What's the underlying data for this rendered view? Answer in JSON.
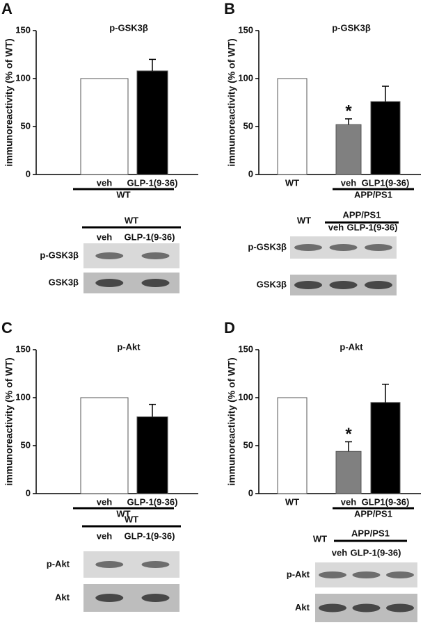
{
  "chart_data": [
    {
      "type": "bar",
      "panel": "A",
      "title": "p-GSK3β",
      "y_label": "immunoreactivity (% of WT)",
      "ylim": [
        0,
        150
      ],
      "yticks": [
        0,
        50,
        100,
        150
      ],
      "categories": [
        "veh",
        "GLP-1(9-36)"
      ],
      "group_label": "WT",
      "values": [
        100,
        108
      ],
      "errors": [
        null,
        12
      ],
      "colors": [
        "#ffffff",
        "#000000"
      ],
      "annotations": [
        null,
        null
      ],
      "blot": {
        "group_label": "WT",
        "lanes": [
          "veh",
          "GLP-1(9-36)"
        ],
        "rows": [
          "p-GSK3β",
          "GSK3β"
        ]
      }
    },
    {
      "type": "bar",
      "panel": "B",
      "title": "p-GSK3β",
      "y_label": "immunoreactivity (% of WT)",
      "ylim": [
        0,
        150
      ],
      "yticks": [
        0,
        50,
        100,
        150
      ],
      "categories": [
        "WT",
        "veh",
        "GLP1(9-36)"
      ],
      "group_label": "APP/PS1",
      "values": [
        100,
        52,
        76
      ],
      "errors": [
        null,
        6,
        16
      ],
      "colors": [
        "#ffffff",
        "#808080",
        "#000000"
      ],
      "annotations": [
        null,
        "*",
        null
      ],
      "blot": {
        "group_label": "APP/PS1",
        "lanes": [
          "WT",
          "veh",
          "GLP-1(9-36)"
        ],
        "rows": [
          "p-GSK3β",
          "GSK3β"
        ]
      }
    },
    {
      "type": "bar",
      "panel": "C",
      "title": "p-Akt",
      "y_label": "immunoreactivity (% of WT)",
      "ylim": [
        0,
        150
      ],
      "yticks": [
        0,
        50,
        100,
        150
      ],
      "categories": [
        "veh",
        "GLP-1(9-36)"
      ],
      "group_label": "WT",
      "values": [
        100,
        80
      ],
      "errors": [
        null,
        13
      ],
      "colors": [
        "#ffffff",
        "#000000"
      ],
      "annotations": [
        null,
        null
      ],
      "blot": {
        "group_label": "WT",
        "lanes": [
          "veh",
          "GLP-1(9-36)"
        ],
        "rows": [
          "p-Akt",
          "Akt"
        ]
      }
    },
    {
      "type": "bar",
      "panel": "D",
      "title": "p-Akt",
      "y_label": "immunoreactivity (% of WT)",
      "ylim": [
        0,
        150
      ],
      "yticks": [
        0,
        50,
        100,
        150
      ],
      "categories": [
        "WT",
        "veh",
        "GLP1(9-36)"
      ],
      "group_label": "APP/PS1",
      "values": [
        100,
        44,
        95
      ],
      "errors": [
        null,
        10,
        19
      ],
      "colors": [
        "#ffffff",
        "#808080",
        "#000000"
      ],
      "annotations": [
        null,
        "*",
        null
      ],
      "blot": {
        "group_label": "APP/PS1",
        "lanes": [
          "WT",
          "veh",
          "GLP-1(9-36)"
        ],
        "rows": [
          "p-Akt",
          "Akt"
        ]
      }
    }
  ]
}
